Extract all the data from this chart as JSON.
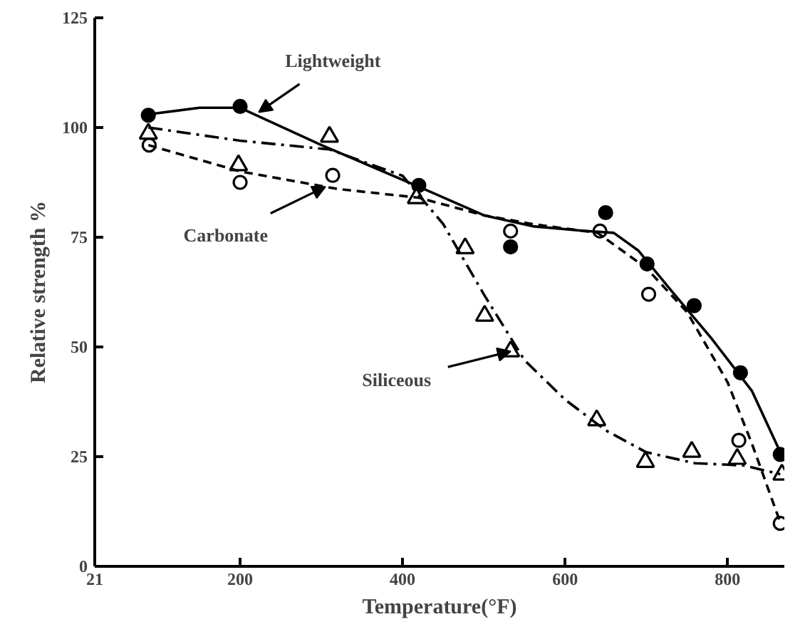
{
  "chart_data": {
    "type": "scatter",
    "xlabel": "Temperature(°F)",
    "ylabel": "Relative strength %",
    "xlim": [
      21,
      870
    ],
    "xticks": [
      21,
      200,
      400,
      600,
      800
    ],
    "ylim": [
      0,
      125
    ],
    "yticks": [
      0,
      25,
      50,
      75,
      100,
      125
    ],
    "grid": false,
    "series": [
      {
        "marker": "circle",
        "color": "#000000",
        "x": [
          87,
          200,
          420,
          533,
          650,
          701,
          759,
          816,
          865
        ],
        "values": [
          102.8,
          104.8,
          86.8,
          72.8,
          80.6,
          68.9,
          59.4,
          44.1,
          25.5
        ]
      },
      {
        "marker": "circle",
        "color": "#000000",
        "x": [
          88,
          200,
          314,
          533,
          643,
          703,
          814,
          865
        ],
        "values": [
          96,
          87.5,
          89.1,
          76.4,
          76.4,
          62,
          28.7,
          9.8
        ]
      },
      {
        "marker": "triangle",
        "color": "#000000",
        "x": [
          87,
          198,
          310,
          417,
          477,
          501,
          533,
          639,
          699,
          756,
          812,
          867
        ],
        "values": [
          98.6,
          91.4,
          97.9,
          83.9,
          72.5,
          57.1,
          49,
          33.3,
          23.8,
          26.1,
          24.5,
          20.9
        ]
      },
      {
        "type": "line",
        "marker": "none",
        "line_style": "solid",
        "color": "#000000",
        "x": [
          87,
          150,
          200,
          300,
          420,
          500,
          560,
          620,
          660,
          690,
          730,
          780,
          830,
          865
        ],
        "values": [
          103,
          104.5,
          104.5,
          96,
          86.5,
          80,
          77.5,
          76.5,
          76,
          72,
          63,
          52,
          40,
          26
        ]
      },
      {
        "type": "line",
        "marker": "none",
        "line_style": "dashed",
        "color": "#000000",
        "x": [
          87,
          200,
          320,
          420,
          500,
          560,
          640,
          700,
          750,
          800,
          830,
          865
        ],
        "values": [
          96,
          90,
          86,
          84,
          80,
          78,
          76,
          68,
          58,
          42,
          28,
          10
        ]
      },
      {
        "type": "line",
        "marker": "none",
        "line_style": "dashdot",
        "color": "#000000",
        "x": [
          87,
          200,
          310,
          400,
          450,
          500,
          550,
          600,
          650,
          700,
          760,
          820,
          865
        ],
        "values": [
          100,
          97,
          95,
          89,
          78,
          62,
          47,
          38,
          31,
          26,
          23.5,
          23,
          21
        ]
      }
    ],
    "annotations": [
      {
        "text": "Lightweight",
        "x": 223,
        "y": 103.5
      },
      {
        "text": "Carbonate",
        "x": 305,
        "y": 86.5
      },
      {
        "text": "Siliceous",
        "x": 533,
        "y": 49
      }
    ]
  }
}
